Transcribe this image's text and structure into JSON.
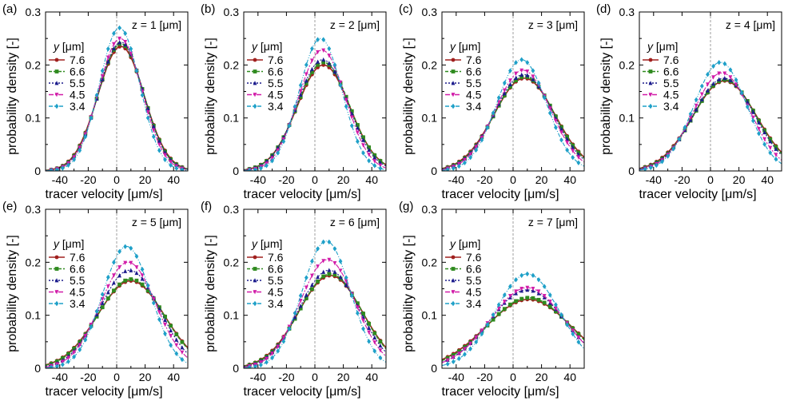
{
  "figure": {
    "x_range": [
      -50,
      50
    ],
    "y_range": [
      0,
      0.3
    ],
    "x_ticks": [
      -40,
      -20,
      0,
      20,
      40
    ],
    "y_ticks": [
      0,
      0.1,
      0.2,
      0.3
    ],
    "x_tick_labels": [
      "-40",
      "-20",
      "0",
      "20",
      "40"
    ],
    "y_tick_labels": [
      "0",
      "0.1",
      "0.2",
      "0.3"
    ],
    "xlabel": "tracer velocity [μm/s]",
    "ylabel": "probability density [-]",
    "legend_title_var": "y",
    "legend_title_unit": " [μm]",
    "series_colors": [
      "#a0201e",
      "#2f8a1f",
      "#1b1b8c",
      "#d11ca8",
      "#1fa0c8"
    ]
  },
  "chart_data": [
    {
      "type": "line",
      "panel": "(a)",
      "title": "z = 1 [μm]",
      "xlabel": "tracer velocity [μm/s]",
      "ylabel": "probability density [-]",
      "xlim": [
        -50,
        50
      ],
      "ylim": [
        0,
        0.3
      ],
      "legend_title": "y [μm]",
      "series": [
        {
          "name": "7.6",
          "mean": 3,
          "sd": 16.3,
          "peak": 0.235
        },
        {
          "name": "6.6",
          "mean": 3,
          "sd": 16.0,
          "peak": 0.24
        },
        {
          "name": "5.5",
          "mean": 3,
          "sd": 15.8,
          "peak": 0.243
        },
        {
          "name": "4.5",
          "mean": 2.5,
          "sd": 15.3,
          "peak": 0.25
        },
        {
          "name": "3.4",
          "mean": 2,
          "sd": 14.2,
          "peak": 0.27
        }
      ]
    },
    {
      "type": "line",
      "panel": "(b)",
      "title": "z = 2 [μm]",
      "xlabel": "tracer velocity [μm/s]",
      "ylabel": "probability density [-]",
      "xlim": [
        -50,
        50
      ],
      "ylim": [
        0,
        0.3
      ],
      "legend_title": "y [μm]",
      "series": [
        {
          "name": "7.6",
          "mean": 6,
          "sd": 18.5,
          "peak": 0.2
        },
        {
          "name": "6.6",
          "mean": 6,
          "sd": 18.3,
          "peak": 0.205
        },
        {
          "name": "5.5",
          "mean": 5.5,
          "sd": 17.8,
          "peak": 0.21
        },
        {
          "name": "4.5",
          "mean": 5,
          "sd": 16.5,
          "peak": 0.228
        },
        {
          "name": "3.4",
          "mean": 4,
          "sd": 15.0,
          "peak": 0.25
        }
      ]
    },
    {
      "type": "line",
      "panel": "(c)",
      "title": "z = 3 [μm]",
      "xlabel": "tracer velocity [μm/s]",
      "ylabel": "probability density [-]",
      "xlim": [
        -50,
        50
      ],
      "ylim": [
        0,
        0.3
      ],
      "legend_title": "y [μm]",
      "series": [
        {
          "name": "7.6",
          "mean": 8,
          "sd": 21.5,
          "peak": 0.175
        },
        {
          "name": "6.6",
          "mean": 8,
          "sd": 21.0,
          "peak": 0.178
        },
        {
          "name": "5.5",
          "mean": 7.5,
          "sd": 20.5,
          "peak": 0.182
        },
        {
          "name": "4.5",
          "mean": 7,
          "sd": 19.5,
          "peak": 0.19
        },
        {
          "name": "3.4",
          "mean": 6,
          "sd": 17.5,
          "peak": 0.21
        }
      ]
    },
    {
      "type": "line",
      "panel": "(d)",
      "title": "z = 4 [μm]",
      "xlabel": "tracer velocity [μm/s]",
      "ylabel": "probability density [-]",
      "xlim": [
        -50,
        50
      ],
      "ylim": [
        0,
        0.3
      ],
      "legend_title": "y [μm]",
      "series": [
        {
          "name": "7.6",
          "mean": 10,
          "sd": 22.5,
          "peak": 0.17
        },
        {
          "name": "6.6",
          "mean": 10,
          "sd": 22.0,
          "peak": 0.172
        },
        {
          "name": "5.5",
          "mean": 9.5,
          "sd": 21.5,
          "peak": 0.175
        },
        {
          "name": "4.5",
          "mean": 8,
          "sd": 20.0,
          "peak": 0.185
        },
        {
          "name": "3.4",
          "mean": 7,
          "sd": 18.5,
          "peak": 0.205
        }
      ]
    },
    {
      "type": "line",
      "panel": "(e)",
      "title": "z = 5 [μm]",
      "xlabel": "tracer velocity [μm/s]",
      "ylabel": "probability density [-]",
      "xlim": [
        -50,
        50
      ],
      "ylim": [
        0,
        0.3
      ],
      "legend_title": "y [μm]",
      "series": [
        {
          "name": "7.6",
          "mean": 10,
          "sd": 23.5,
          "peak": 0.165
        },
        {
          "name": "6.6",
          "mean": 10,
          "sd": 23.0,
          "peak": 0.168
        },
        {
          "name": "5.5",
          "mean": 9,
          "sd": 21.0,
          "peak": 0.185
        },
        {
          "name": "4.5",
          "mean": 8,
          "sd": 19.5,
          "peak": 0.2
        },
        {
          "name": "3.4",
          "mean": 7,
          "sd": 17.0,
          "peak": 0.23
        }
      ]
    },
    {
      "type": "line",
      "panel": "(f)",
      "title": "z = 6 [μm]",
      "xlabel": "tracer velocity [μm/s]",
      "ylabel": "probability density [-]",
      "xlim": [
        -50,
        50
      ],
      "ylim": [
        0,
        0.3
      ],
      "legend_title": "y [μm]",
      "series": [
        {
          "name": "7.6",
          "mean": 11,
          "sd": 22.5,
          "peak": 0.175
        },
        {
          "name": "6.6",
          "mean": 11,
          "sd": 22.0,
          "peak": 0.178
        },
        {
          "name": "5.5",
          "mean": 10,
          "sd": 21.0,
          "peak": 0.185
        },
        {
          "name": "4.5",
          "mean": 9,
          "sd": 19.5,
          "peak": 0.205
        },
        {
          "name": "3.4",
          "mean": 8,
          "sd": 17.0,
          "peak": 0.24
        }
      ]
    },
    {
      "type": "line",
      "panel": "(g)",
      "title": "z = 7 [μm]",
      "xlabel": "tracer velocity [μm/s]",
      "ylabel": "probability density [-]",
      "xlim": [
        -50,
        50
      ],
      "ylim": [
        0,
        0.3
      ],
      "legend_title": "y [μm]",
      "series": [
        {
          "name": "7.6",
          "mean": 11,
          "sd": 30.0,
          "peak": 0.13
        },
        {
          "name": "6.6",
          "mean": 11,
          "sd": 29.0,
          "peak": 0.133
        },
        {
          "name": "5.5",
          "mean": 10,
          "sd": 26.5,
          "peak": 0.148
        },
        {
          "name": "4.5",
          "mean": 10,
          "sd": 26.0,
          "peak": 0.152
        },
        {
          "name": "3.4",
          "mean": 10,
          "sd": 22.5,
          "peak": 0.178
        }
      ]
    }
  ]
}
